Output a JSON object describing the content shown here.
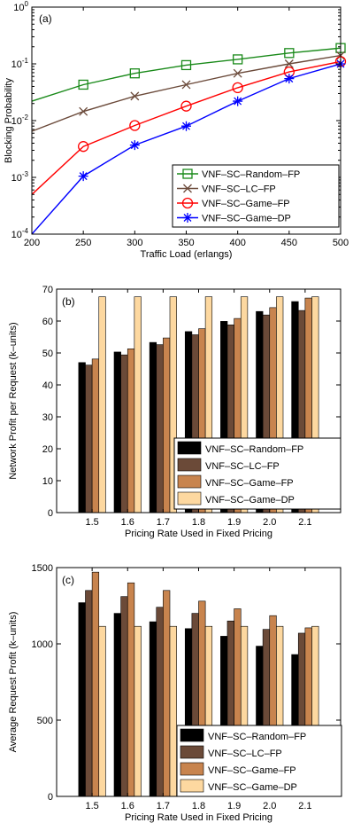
{
  "chart_data": [
    {
      "type": "line",
      "panel_label": "(a)",
      "xlabel": "Traffic Load (erlangs)",
      "ylabel": "Blocking Probability",
      "xlim": [
        200,
        500
      ],
      "ylim": [
        0.0001,
        1
      ],
      "yscale": "log",
      "xticks": [
        "200",
        "250",
        "300",
        "350",
        "400",
        "450",
        "500"
      ],
      "yticks": [
        "10^-4",
        "10^-3",
        "10^-2",
        "10^-1",
        "10^0"
      ],
      "grid": false,
      "legend_position": "lower-right",
      "x": [
        200,
        250,
        300,
        350,
        400,
        450,
        500
      ],
      "series": [
        {
          "name": "VNF–SC–Random–FP",
          "color": "#1a8a1a",
          "marker": "square",
          "values": [
            0.022,
            0.043,
            0.068,
            0.095,
            0.12,
            0.155,
            0.19
          ]
        },
        {
          "name": "VNF–SC–LC–FP",
          "color": "#6b4a3a",
          "marker": "x",
          "values": [
            0.0065,
            0.0145,
            0.027,
            0.043,
            0.068,
            0.1,
            0.14
          ]
        },
        {
          "name": "VNF–SC–Game–FP",
          "color": "#ff0000",
          "marker": "circle",
          "values": [
            0.0005,
            0.0035,
            0.0082,
            0.018,
            0.038,
            0.072,
            0.11
          ]
        },
        {
          "name": "VNF–SC–Game–DP",
          "color": "#0000ff",
          "marker": "star",
          "values": [
            0.0001,
            0.00105,
            0.0037,
            0.008,
            0.022,
            0.055,
            0.1
          ]
        }
      ]
    },
    {
      "type": "bar",
      "panel_label": "(b)",
      "xlabel": "Pricing Rate Used in Fixed Pricing",
      "ylabel": "Network Profit per Request (k–units)",
      "ylim": [
        0,
        70
      ],
      "yticks": [
        "0",
        "10",
        "20",
        "30",
        "40",
        "50",
        "60",
        "70"
      ],
      "categories": [
        "1.5",
        "1.6",
        "1.7",
        "1.8",
        "1.9",
        "2.0",
        "2.1"
      ],
      "grid": false,
      "legend_position": "lower-right",
      "series": [
        {
          "name": "VNF–SC–Random–FP",
          "color": "#000000",
          "values": [
            47,
            50.3,
            53.3,
            56.7,
            59.9,
            63,
            66.1
          ]
        },
        {
          "name": "VNF–SC–LC–FP",
          "color": "#6b4a38",
          "values": [
            46.2,
            49.4,
            52.6,
            55.7,
            58.8,
            61.9,
            63.3
          ]
        },
        {
          "name": "VNF–SC–Game–FP",
          "color": "#c8844e",
          "values": [
            48.1,
            51.3,
            54.7,
            57.6,
            60.8,
            64.2,
            67.2
          ]
        },
        {
          "name": "VNF–SC–Game–DP",
          "color": "#fdd8a0",
          "values": [
            67.6,
            67.6,
            67.6,
            67.6,
            67.6,
            67.6,
            67.6
          ]
        }
      ]
    },
    {
      "type": "bar",
      "panel_label": "(c)",
      "xlabel": "Pricing Rate Used in Fixed Pricing",
      "ylabel": "Average Request Profit (k–units)",
      "ylim": [
        0,
        1500
      ],
      "yticks": [
        "0",
        "500",
        "1000",
        "1500"
      ],
      "categories": [
        "1.5",
        "1.6",
        "1.7",
        "1.8",
        "1.9",
        "2.0",
        "2.1"
      ],
      "grid": false,
      "legend_position": "lower-right",
      "series": [
        {
          "name": "VNF–SC–Random–FP",
          "color": "#000000",
          "values": [
            1270,
            1200,
            1145,
            1100,
            1050,
            985,
            930
          ]
        },
        {
          "name": "VNF–SC–LC–FP",
          "color": "#6b4a38",
          "values": [
            1350,
            1310,
            1240,
            1200,
            1150,
            1095,
            1070
          ]
        },
        {
          "name": "VNF–SC–Game–FP",
          "color": "#c8844e",
          "values": [
            1470,
            1400,
            1350,
            1280,
            1230,
            1185,
            1105
          ]
        },
        {
          "name": "VNF–SC–Game–DP",
          "color": "#fdd8a0",
          "values": [
            1115,
            1115,
            1115,
            1115,
            1115,
            1115,
            1115
          ]
        }
      ]
    }
  ]
}
